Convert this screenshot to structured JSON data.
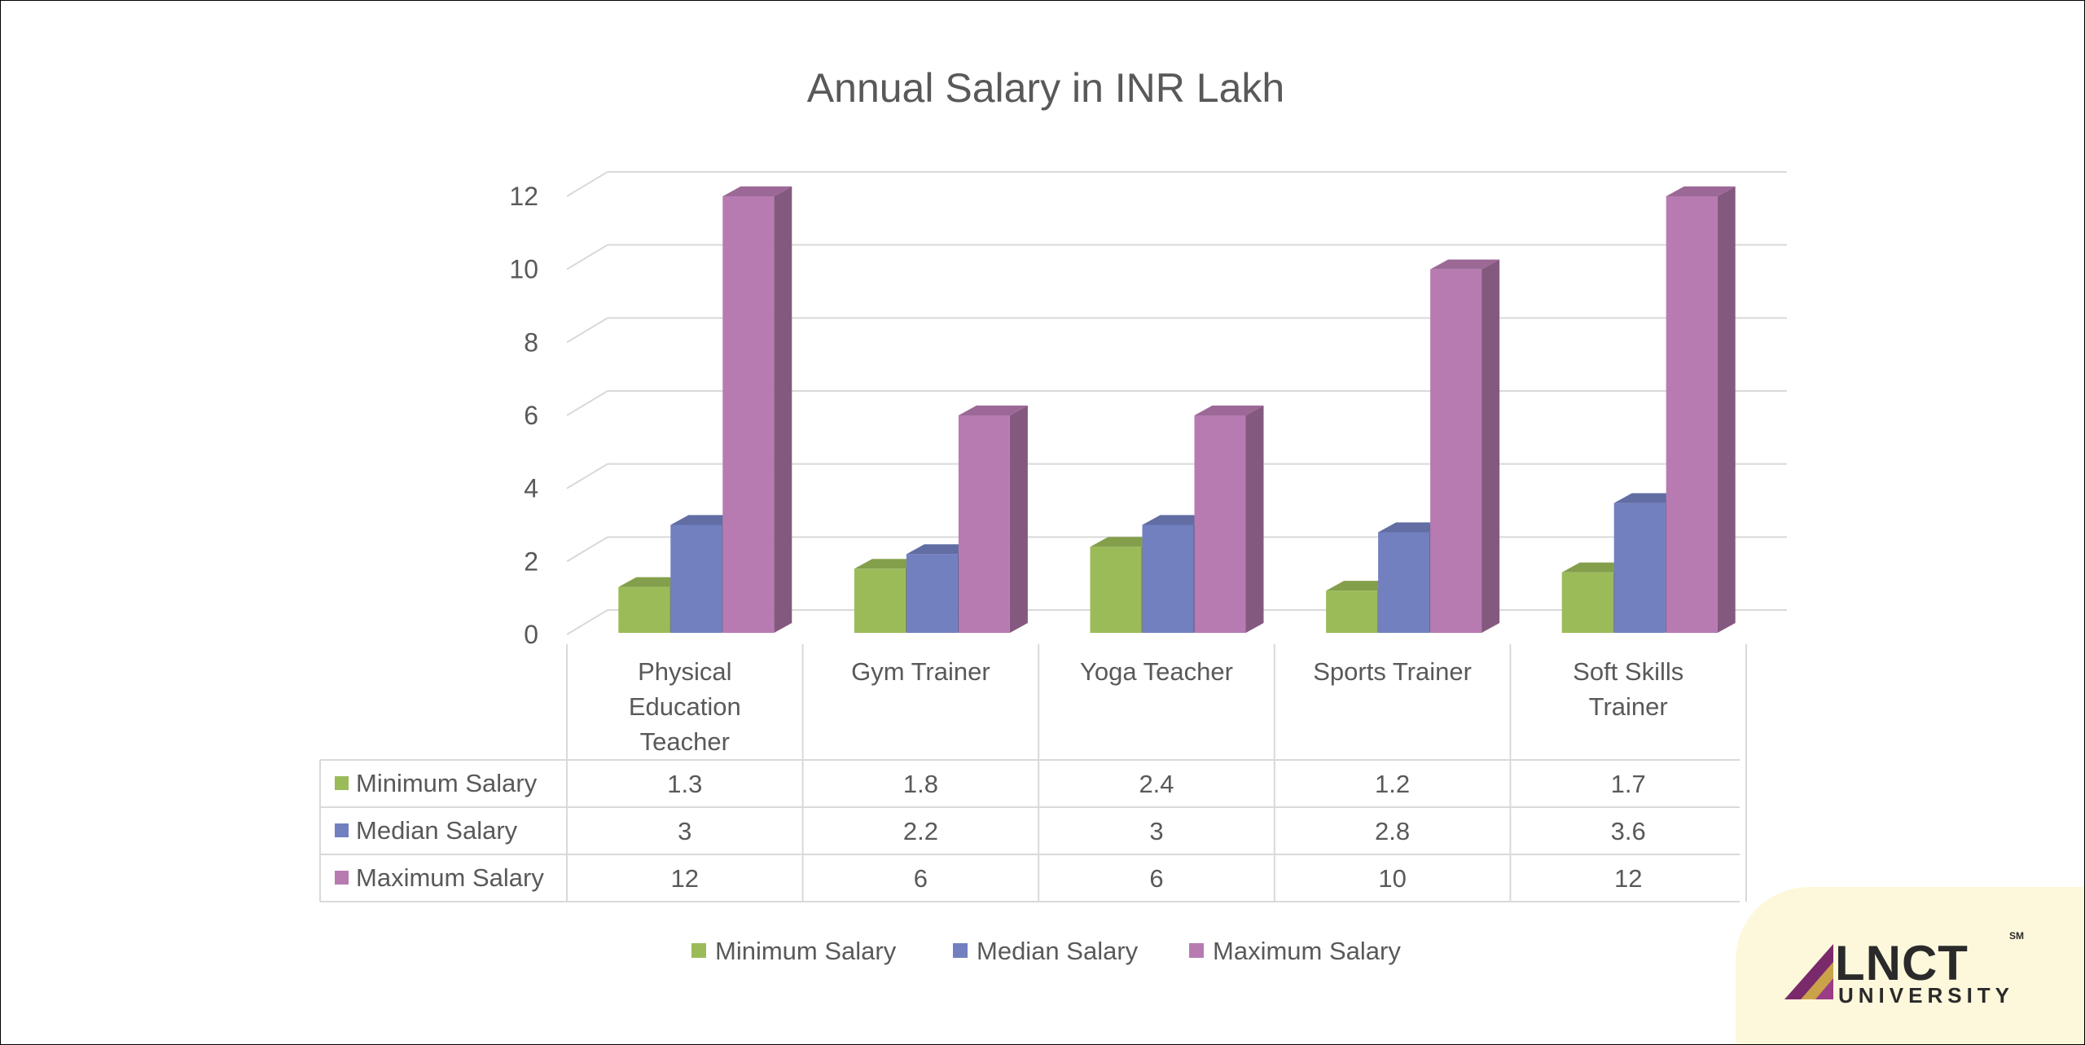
{
  "chart_data": {
    "type": "bar",
    "title": "Annual Salary in INR Lakh",
    "categories": [
      [
        "Physical",
        "Education",
        "Teacher"
      ],
      [
        "Gym Trainer"
      ],
      [
        "Yoga Teacher"
      ],
      [
        "Sports Trainer"
      ],
      [
        "Soft Skills",
        "Trainer"
      ]
    ],
    "series": [
      {
        "name": "Minimum Salary",
        "color": "#9bbb59",
        "values": [
          1.3,
          1.8,
          2.4,
          1.2,
          1.7
        ]
      },
      {
        "name": "Median Salary",
        "color": "#7280c0",
        "values": [
          3,
          2.2,
          3,
          2.8,
          3.6
        ]
      },
      {
        "name": "Maximum Salary",
        "color": "#b77bb1",
        "values": [
          12,
          6,
          6,
          10,
          12
        ]
      }
    ],
    "ylim": [
      0,
      12
    ],
    "yticks": [
      0,
      2,
      4,
      6,
      8,
      10,
      12
    ],
    "grid": true,
    "legend": "bottom",
    "data_table": true,
    "style": "3d-clustered-column"
  },
  "logo": {
    "main": "LNCT",
    "sub": "UNIVERSITY",
    "mark": "SM"
  }
}
